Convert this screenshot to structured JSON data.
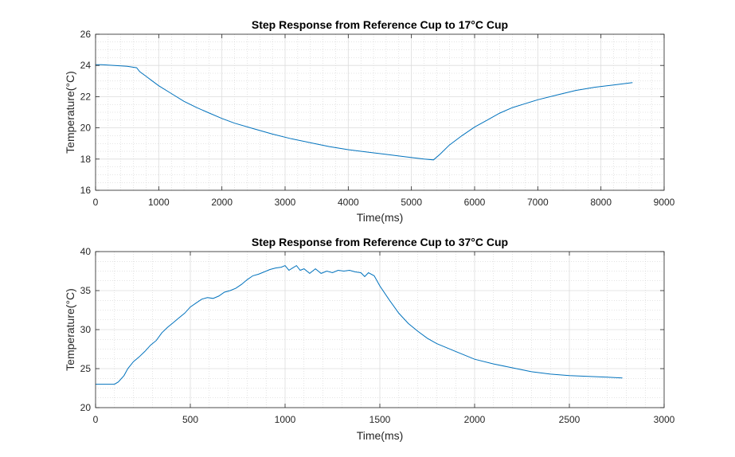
{
  "chart_data": [
    {
      "type": "line",
      "title": "Step Response from Reference Cup to 17°C Cup",
      "xlabel": "Time(ms)",
      "ylabel": "Temperature(°C)",
      "xlim": [
        0,
        9000
      ],
      "ylim": [
        16,
        26
      ],
      "xticks": [
        0,
        1000,
        2000,
        3000,
        4000,
        5000,
        6000,
        7000,
        8000,
        9000
      ],
      "yticks": [
        16,
        18,
        20,
        22,
        24,
        26
      ],
      "grid": true,
      "minor_grid": true,
      "line_color": "#0072BD",
      "series": [
        {
          "x": [
            0,
            100,
            300,
            500,
            650,
            700,
            800,
            900,
            1000,
            1200,
            1400,
            1600,
            1800,
            2000,
            2200,
            2500,
            2800,
            3100,
            3400,
            3700,
            4000,
            4300,
            4600,
            4900,
            5200,
            5350,
            5450,
            5600,
            5800,
            6000,
            6200,
            6400,
            6600,
            6800,
            7000,
            7300,
            7600,
            7900,
            8200,
            8500
          ],
          "y": [
            24.05,
            24.05,
            24.0,
            23.95,
            23.85,
            23.6,
            23.3,
            23.0,
            22.7,
            22.2,
            21.7,
            21.3,
            20.95,
            20.6,
            20.3,
            19.95,
            19.6,
            19.3,
            19.05,
            18.8,
            18.6,
            18.45,
            18.3,
            18.15,
            18.0,
            17.95,
            18.3,
            18.9,
            19.5,
            20.05,
            20.5,
            20.95,
            21.3,
            21.55,
            21.8,
            22.1,
            22.4,
            22.6,
            22.75,
            22.9
          ]
        }
      ]
    },
    {
      "type": "line",
      "title": "Step Response from Reference Cup to 37°C Cup",
      "xlabel": "Time(ms)",
      "ylabel": "Temperature(°C)",
      "xlim": [
        0,
        3000
      ],
      "ylim": [
        20,
        40
      ],
      "xticks": [
        0,
        500,
        1000,
        1500,
        2000,
        2500,
        3000
      ],
      "yticks": [
        20,
        25,
        30,
        35,
        40
      ],
      "grid": true,
      "minor_grid": true,
      "line_color": "#0072BD",
      "series": [
        {
          "x": [
            0,
            50,
            100,
            120,
            150,
            170,
            200,
            230,
            260,
            290,
            320,
            350,
            380,
            410,
            440,
            470,
            500,
            530,
            560,
            590,
            620,
            650,
            680,
            710,
            740,
            770,
            800,
            830,
            860,
            890,
            920,
            950,
            980,
            1000,
            1020,
            1040,
            1060,
            1080,
            1100,
            1130,
            1160,
            1190,
            1220,
            1250,
            1280,
            1310,
            1340,
            1370,
            1400,
            1420,
            1440,
            1470,
            1500,
            1550,
            1600,
            1650,
            1700,
            1750,
            1800,
            1900,
            2000,
            2100,
            2200,
            2300,
            2400,
            2500,
            2600,
            2700,
            2780
          ],
          "y": [
            23.0,
            23.0,
            23.0,
            23.3,
            24.1,
            25.0,
            25.9,
            26.5,
            27.2,
            28.0,
            28.6,
            29.6,
            30.3,
            30.9,
            31.5,
            32.1,
            32.9,
            33.4,
            33.9,
            34.1,
            34.0,
            34.3,
            34.8,
            35.0,
            35.3,
            35.8,
            36.4,
            36.9,
            37.1,
            37.4,
            37.7,
            37.9,
            38.0,
            38.2,
            37.6,
            37.9,
            38.2,
            37.6,
            37.8,
            37.2,
            37.8,
            37.2,
            37.5,
            37.3,
            37.6,
            37.5,
            37.6,
            37.4,
            37.3,
            36.8,
            37.3,
            36.9,
            35.6,
            33.8,
            32.1,
            30.8,
            29.8,
            28.9,
            28.2,
            27.2,
            26.2,
            25.6,
            25.1,
            24.6,
            24.3,
            24.1,
            24.0,
            23.9,
            23.8
          ]
        }
      ]
    }
  ]
}
